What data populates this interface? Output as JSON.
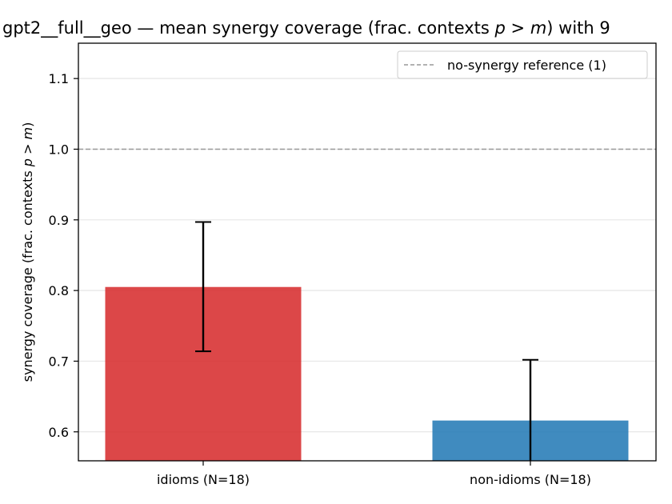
{
  "chart_data": {
    "type": "bar",
    "title_parts": {
      "model": "gpt2__full__geo",
      "mid": " — mean synergy coverage  (frac. contexts ",
      "p": "p",
      "gt": " > ",
      "m": "m",
      "tail": ") with 9"
    },
    "ylabel_parts": {
      "pre": "synergy coverage  (frac. contexts ",
      "p": "p",
      "gt": " > ",
      "m": "m",
      "post": ")"
    },
    "categories": [
      "idioms (N=18)",
      "non-idioms (N=18)"
    ],
    "values": [
      0.805,
      0.616
    ],
    "error_low": [
      0.714,
      0.555
    ],
    "error_high": [
      0.897,
      0.702
    ],
    "colors": [
      "#d62728",
      "#1f77b4"
    ],
    "ylim": [
      0.559,
      1.15
    ],
    "yticks": [
      "0.6",
      "0.7",
      "0.8",
      "0.9",
      "1.0",
      "1.1"
    ],
    "ytick_values": [
      0.6,
      0.7,
      0.8,
      0.9,
      1.0,
      1.1
    ],
    "reference_line": {
      "value": 1.0,
      "label": "no-synergy reference (1)",
      "color": "#999999",
      "style": "dashed"
    },
    "legend_position": "top-right",
    "grid": "horizontal"
  }
}
